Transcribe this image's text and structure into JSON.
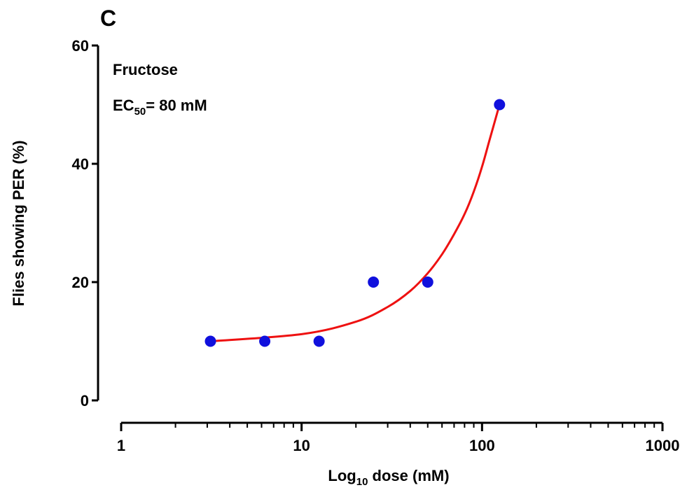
{
  "panel_label": "C",
  "chart_data": {
    "type": "scatter",
    "xscale": "log",
    "xlabel_main": "Log",
    "xlabel_sub": "10",
    "xlabel_rest": " dose (mM)",
    "ylabel": "Flies showing PER (%)",
    "xlim": [
      1,
      1000
    ],
    "ylim": [
      0,
      60
    ],
    "x_ticks": [
      1,
      10,
      100,
      1000
    ],
    "x_tick_labels": [
      "1",
      "10",
      "100",
      "1000"
    ],
    "y_ticks": [
      0,
      20,
      40,
      60
    ],
    "y_tick_labels": [
      "0",
      "20",
      "40",
      "60"
    ],
    "annotation": {
      "line1": "Fructose",
      "ec_main": "EC",
      "ec_sub": "50",
      "ec_rest": "= 80 mM"
    },
    "series": [
      {
        "x": [
          3.125,
          6.25,
          12.5,
          25,
          50,
          125
        ],
        "y": [
          10,
          10,
          10,
          20,
          20,
          50
        ],
        "color": "#1010dd"
      }
    ],
    "fit": {
      "x": [
        3.125,
        10,
        20,
        30,
        40,
        50,
        60,
        70,
        80,
        90,
        100,
        110,
        125
      ],
      "y": [
        10,
        11.2,
        13.3,
        15.8,
        18.5,
        21.5,
        24.7,
        28.1,
        31.5,
        35.3,
        39.5,
        44.0,
        50
      ],
      "color": "#ee1111"
    }
  }
}
